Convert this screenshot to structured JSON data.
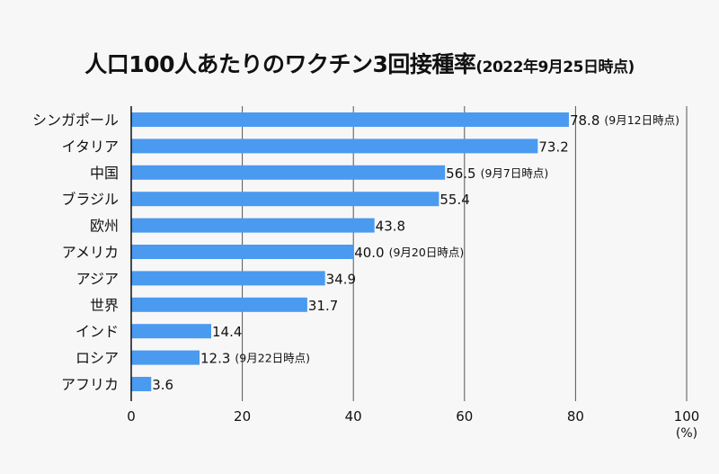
{
  "chart_data": {
    "type": "bar",
    "orientation": "horizontal",
    "title": "人口100人あたりのワクチン3回接種率",
    "subtitle": "(2022年9月25日時点)",
    "categories": [
      "シンガポール",
      "イタリア",
      "中国",
      "ブラジル",
      "欧州",
      "アメリカ",
      "アジア",
      "世界",
      "インド",
      "ロシア",
      "アフリカ"
    ],
    "values": [
      78.8,
      73.2,
      56.5,
      55.4,
      43.8,
      40.0,
      34.9,
      31.7,
      14.4,
      12.3,
      3.6
    ],
    "value_labels": [
      "78.8",
      "73.2",
      "56.5",
      "55.4",
      "43.8",
      "40.0",
      "34.9",
      "31.7",
      "14.4",
      "12.3",
      "3.6"
    ],
    "annotations": [
      "(9月12日時点)",
      "",
      "(9月7日時点)",
      "",
      "",
      "(9月20日時点)",
      "",
      "",
      "",
      "(9月22日時点)",
      ""
    ],
    "xlim": [
      0,
      100
    ],
    "xticks": [
      "0",
      "20",
      "40",
      "60",
      "80",
      "100"
    ],
    "xunit": "(%)",
    "grid": true,
    "bar_color": "#4a9af0"
  }
}
